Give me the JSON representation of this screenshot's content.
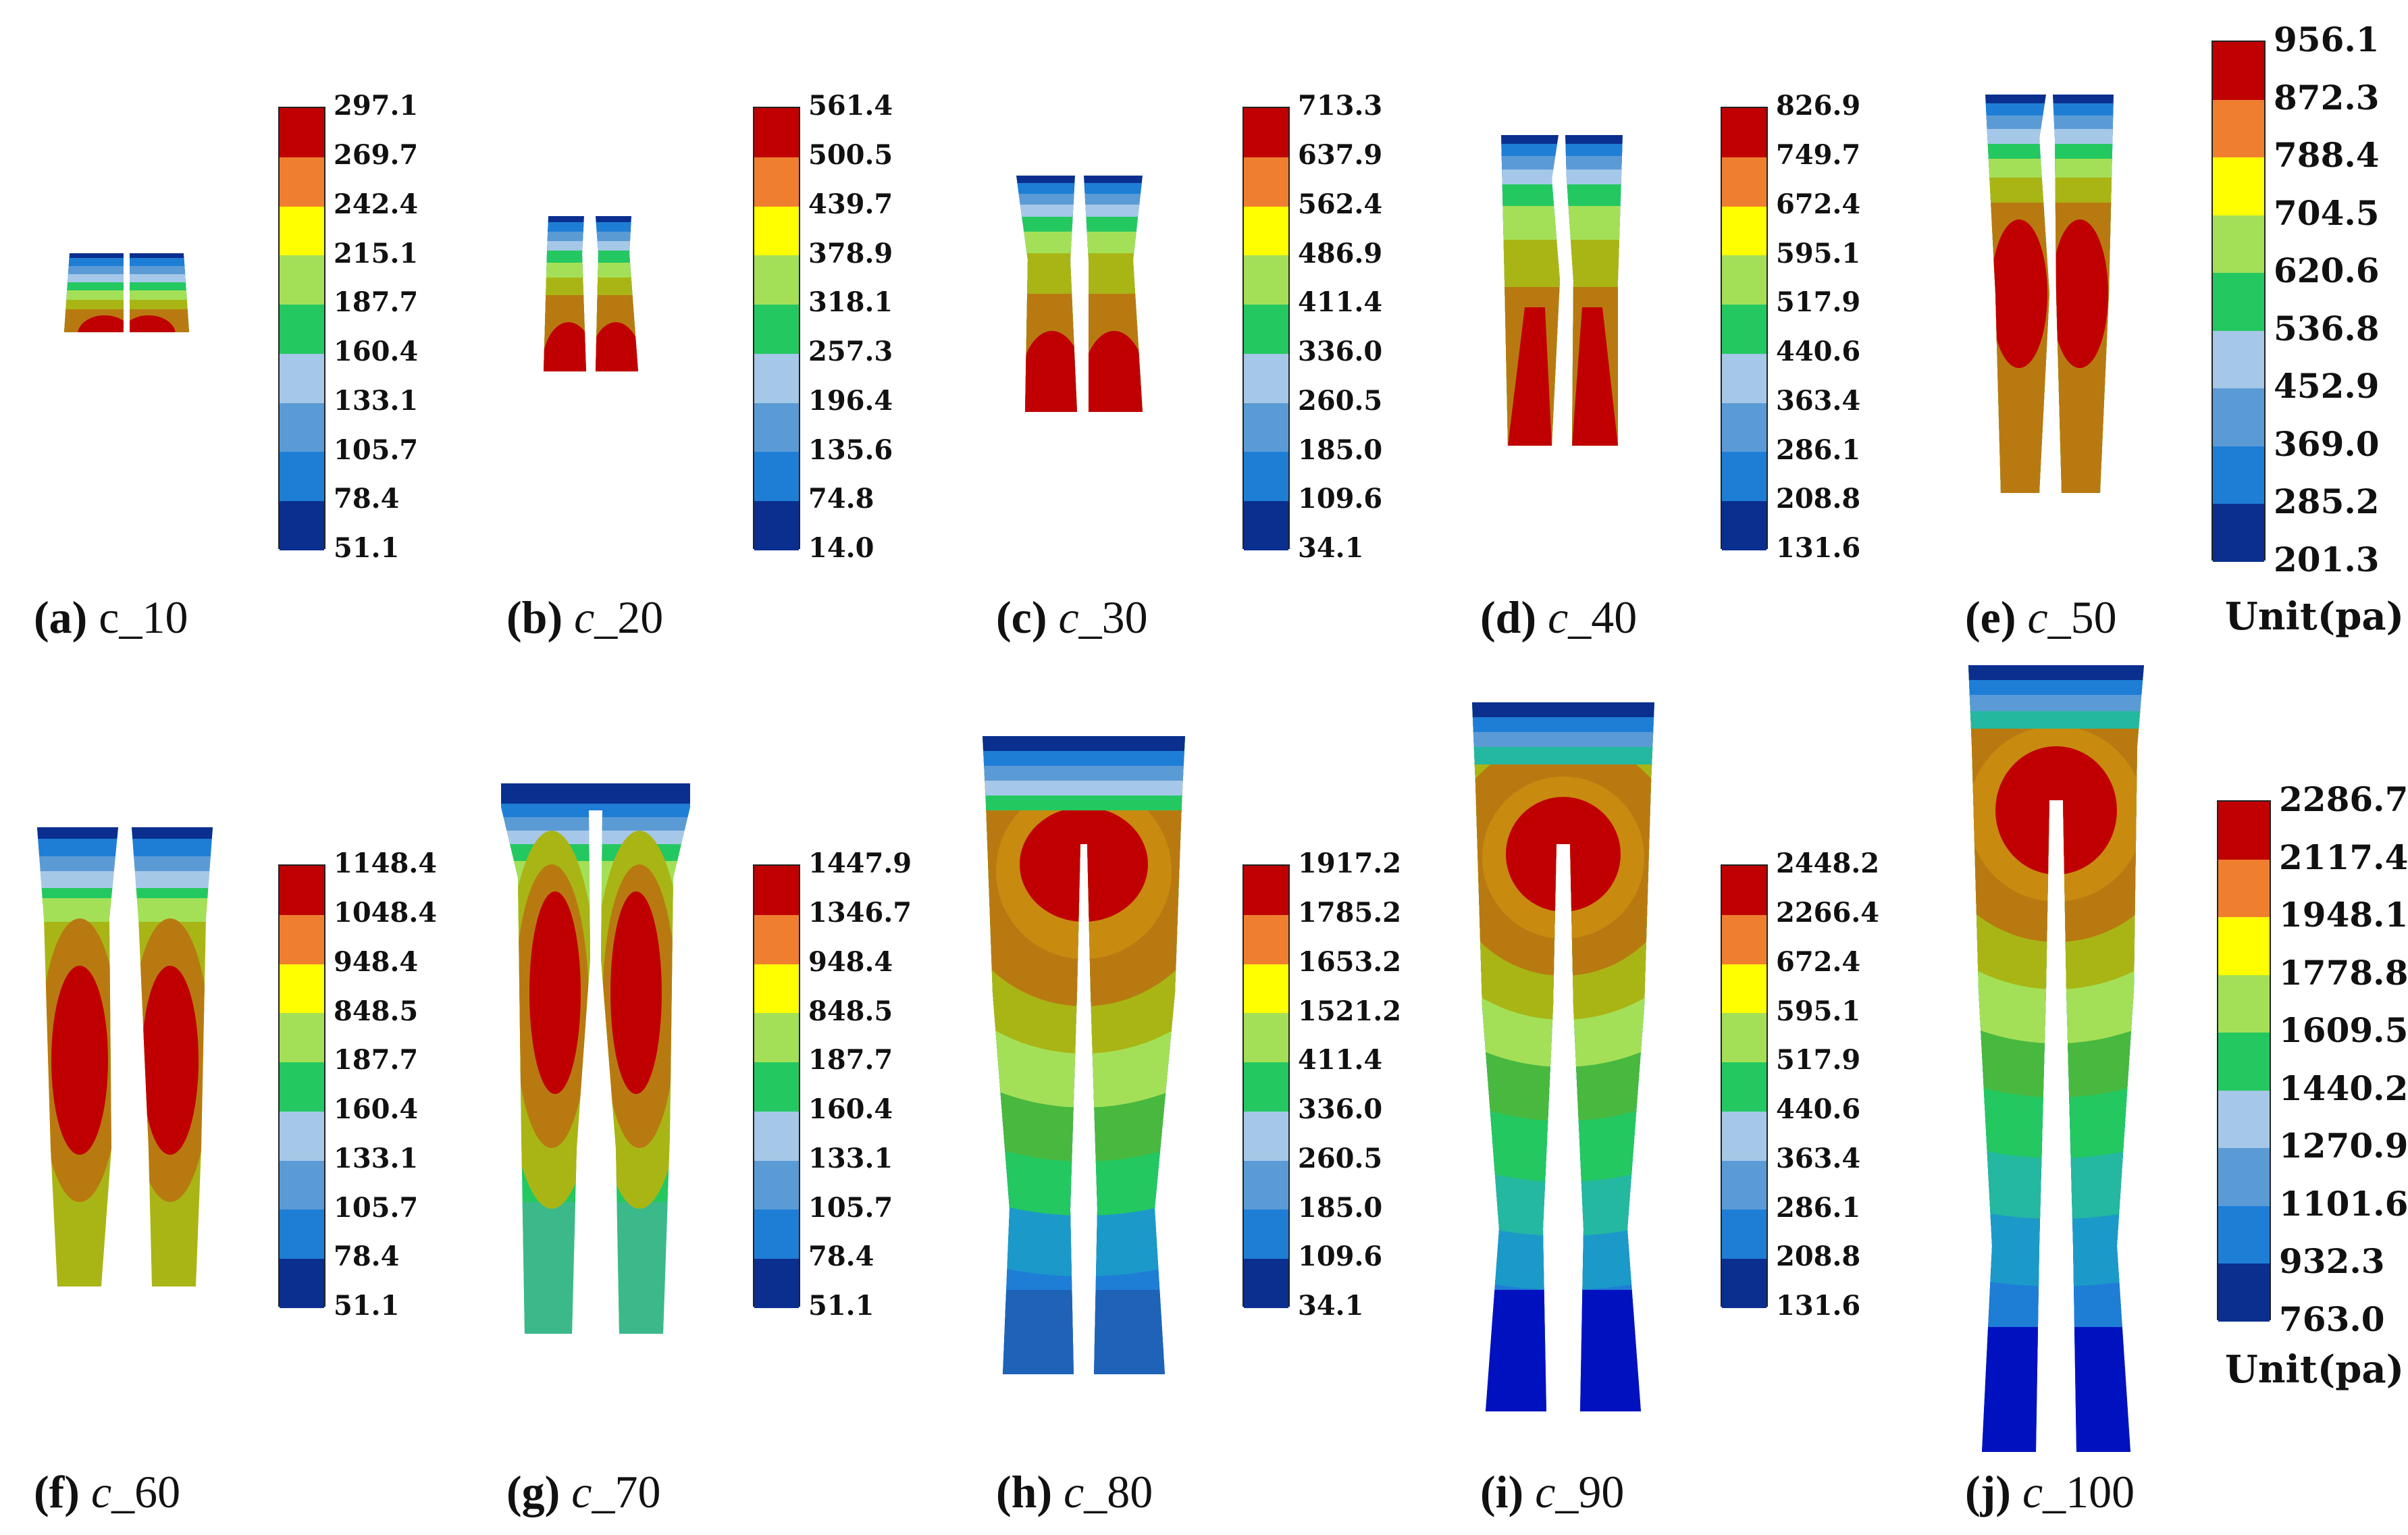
{
  "colors": {
    "scale": [
      "#c00000",
      "#ef7f2f",
      "#ffff00",
      "#a4e057",
      "#24c860",
      "#a6c8e8",
      "#5b9bd5",
      "#1e7ed6",
      "#0a2f8f"
    ]
  },
  "panels": [
    {
      "id": "a",
      "label": "(a)",
      "label_prefix": "c",
      "label_suffix": "_10",
      "italic": false,
      "ticks": [
        "297.1",
        "269.7",
        "242.4",
        "215.1",
        "187.7",
        "160.4",
        "133.1",
        "105.7",
        "78.4",
        "51.1"
      ]
    },
    {
      "id": "b",
      "label": "(b)",
      "label_prefix": "c",
      "label_suffix": "_20",
      "italic": true,
      "ticks": [
        "561.4",
        "500.5",
        "439.7",
        "378.9",
        "318.1",
        "257.3",
        "196.4",
        "135.6",
        "74.8",
        "14.0"
      ]
    },
    {
      "id": "c",
      "label": "(c)",
      "label_prefix": "c",
      "label_suffix": "_30",
      "italic": true,
      "ticks": [
        "713.3",
        "637.9",
        "562.4",
        "486.9",
        "411.4",
        "336.0",
        "260.5",
        "185.0",
        "109.6",
        "34.1"
      ]
    },
    {
      "id": "d",
      "label": "(d)",
      "label_prefix": "c",
      "label_suffix": "_40",
      "italic": true,
      "ticks": [
        "826.9",
        "749.7",
        "672.4",
        "595.1",
        "517.9",
        "440.6",
        "363.4",
        "286.1",
        "208.8",
        "131.6"
      ]
    },
    {
      "id": "e",
      "label": "(e)",
      "label_prefix": "c",
      "label_suffix": "_50",
      "italic": true,
      "ticks": [
        "956.1",
        "872.3",
        "788.4",
        "704.5",
        "620.6",
        "536.8",
        "452.9",
        "369.0",
        "285.2",
        "201.3"
      ],
      "unit": "Unit(pa)"
    },
    {
      "id": "f",
      "label": "(f)",
      "label_prefix": "c",
      "label_suffix": "_60",
      "italic": true,
      "ticks": [
        "1148.4",
        "1048.4",
        "948.4",
        "848.5",
        "187.7",
        "160.4",
        "133.1",
        "105.7",
        "78.4",
        "51.1"
      ]
    },
    {
      "id": "g",
      "label": "(g)",
      "label_prefix": "c",
      "label_suffix": "_70",
      "italic": true,
      "ticks": [
        "1447.9",
        "1346.7",
        "948.4",
        "848.5",
        "187.7",
        "160.4",
        "133.1",
        "105.7",
        "78.4",
        "51.1"
      ]
    },
    {
      "id": "h",
      "label": "(h)",
      "label_prefix": "c",
      "label_suffix": "_80",
      "italic": true,
      "ticks": [
        "1917.2",
        "1785.2",
        "1653.2",
        "1521.2",
        "411.4",
        "336.0",
        "260.5",
        "185.0",
        "109.6",
        "34.1"
      ]
    },
    {
      "id": "i",
      "label": "(i)",
      "label_prefix": "c",
      "label_suffix": "_90",
      "italic": true,
      "ticks": [
        "2448.2",
        "2266.4",
        "672.4",
        "595.1",
        "517.9",
        "440.6",
        "363.4",
        "286.1",
        "208.8",
        "131.6"
      ]
    },
    {
      "id": "j",
      "label": "(j)",
      "label_prefix": "c",
      "label_suffix": "_100",
      "italic": true,
      "ticks": [
        "2286.7",
        "2117.4",
        "1948.1",
        "1778.8",
        "1609.5",
        "1440.2",
        "1270.9",
        "1101.6",
        "932.3",
        "763.0"
      ],
      "unit": "Unit(pa)"
    }
  ]
}
